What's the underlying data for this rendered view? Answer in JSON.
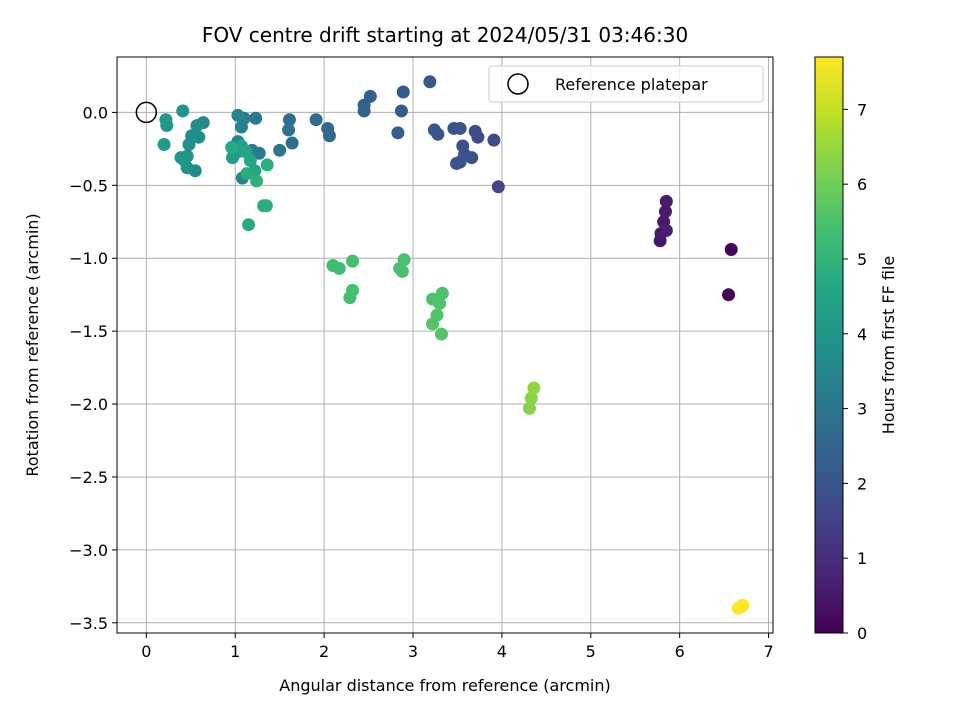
{
  "chart_data": {
    "type": "scatter",
    "title": "FOV centre drift starting at 2024/05/31 03:46:30",
    "xlabel": "Angular distance from reference (arcmin)",
    "ylabel": "Rotation from reference (arcmin)",
    "colorbar_label": "Hours from first FF file",
    "xlim": [
      -0.33,
      7.05
    ],
    "ylim": [
      -3.57,
      0.38
    ],
    "x_ticks": [
      0,
      1,
      2,
      3,
      4,
      5,
      6,
      7
    ],
    "y_ticks": [
      0.0,
      -0.5,
      -1.0,
      -1.5,
      -2.0,
      -2.5,
      -3.0,
      -3.5
    ],
    "colorbar_range": [
      0,
      7.7
    ],
    "colorbar_ticks": [
      0,
      1,
      2,
      3,
      4,
      5,
      6,
      7
    ],
    "colormap": "viridis",
    "grid": true,
    "legend": {
      "label": "Reference platepar",
      "position": "top-right"
    },
    "reference_point": {
      "x": 0.0,
      "y": 0.0
    },
    "points": [
      {
        "x": 6.55,
        "y": -1.25,
        "t": 0.0
      },
      {
        "x": 6.58,
        "y": -0.94,
        "t": 0.05
      },
      {
        "x": 5.78,
        "y": -0.88,
        "t": 0.5
      },
      {
        "x": 5.79,
        "y": -0.83,
        "t": 0.52
      },
      {
        "x": 5.82,
        "y": -0.75,
        "t": 0.55
      },
      {
        "x": 5.84,
        "y": -0.68,
        "t": 0.58
      },
      {
        "x": 5.85,
        "y": -0.61,
        "t": 0.6
      },
      {
        "x": 5.85,
        "y": -0.81,
        "t": 0.62
      },
      {
        "x": 3.96,
        "y": -0.51,
        "t": 1.6
      },
      {
        "x": 3.91,
        "y": -0.19,
        "t": 1.7
      },
      {
        "x": 3.73,
        "y": -0.17,
        "t": 1.75
      },
      {
        "x": 3.7,
        "y": -0.13,
        "t": 1.8
      },
      {
        "x": 3.66,
        "y": -0.31,
        "t": 1.85
      },
      {
        "x": 3.58,
        "y": -0.29,
        "t": 1.9
      },
      {
        "x": 3.56,
        "y": -0.23,
        "t": 1.92
      },
      {
        "x": 3.53,
        "y": -0.34,
        "t": 1.95
      },
      {
        "x": 3.49,
        "y": -0.35,
        "t": 1.97
      },
      {
        "x": 3.53,
        "y": -0.11,
        "t": 2.0
      },
      {
        "x": 3.46,
        "y": -0.11,
        "t": 2.02
      },
      {
        "x": 3.28,
        "y": -0.15,
        "t": 2.05
      },
      {
        "x": 3.24,
        "y": -0.12,
        "t": 2.07
      },
      {
        "x": 3.19,
        "y": 0.21,
        "t": 2.1
      },
      {
        "x": 2.89,
        "y": 0.14,
        "t": 2.15
      },
      {
        "x": 2.87,
        "y": 0.01,
        "t": 2.2
      },
      {
        "x": 2.83,
        "y": -0.14,
        "t": 2.25
      },
      {
        "x": 2.52,
        "y": 0.11,
        "t": 2.3
      },
      {
        "x": 2.45,
        "y": 0.05,
        "t": 2.35
      },
      {
        "x": 2.45,
        "y": 0.01,
        "t": 2.4
      },
      {
        "x": 2.06,
        "y": -0.16,
        "t": 2.6
      },
      {
        "x": 2.04,
        "y": -0.11,
        "t": 2.62
      },
      {
        "x": 1.91,
        "y": -0.05,
        "t": 2.7
      },
      {
        "x": 1.64,
        "y": -0.21,
        "t": 2.8
      },
      {
        "x": 1.61,
        "y": -0.05,
        "t": 2.85
      },
      {
        "x": 1.6,
        "y": -0.12,
        "t": 2.9
      },
      {
        "x": 1.5,
        "y": -0.26,
        "t": 3.0
      },
      {
        "x": 1.27,
        "y": -0.28,
        "t": 3.1
      },
      {
        "x": 1.23,
        "y": -0.04,
        "t": 3.15
      },
      {
        "x": 1.19,
        "y": -0.26,
        "t": 3.2
      },
      {
        "x": 1.1,
        "y": -0.04,
        "t": 3.3
      },
      {
        "x": 1.07,
        "y": -0.1,
        "t": 3.35
      },
      {
        "x": 1.08,
        "y": -0.45,
        "t": 3.4
      },
      {
        "x": 1.03,
        "y": -0.02,
        "t": 3.45
      },
      {
        "x": 1.03,
        "y": -0.2,
        "t": 3.5
      },
      {
        "x": 0.64,
        "y": -0.07,
        "t": 3.6
      },
      {
        "x": 0.59,
        "y": -0.17,
        "t": 3.65
      },
      {
        "x": 0.57,
        "y": -0.09,
        "t": 3.7
      },
      {
        "x": 0.55,
        "y": -0.4,
        "t": 3.75
      },
      {
        "x": 0.51,
        "y": -0.16,
        "t": 3.8
      },
      {
        "x": 0.48,
        "y": -0.22,
        "t": 3.85
      },
      {
        "x": 0.46,
        "y": -0.38,
        "t": 3.9
      },
      {
        "x": 0.46,
        "y": -0.3,
        "t": 3.92
      },
      {
        "x": 0.43,
        "y": -0.33,
        "t": 3.95
      },
      {
        "x": 0.41,
        "y": 0.01,
        "t": 4.0
      },
      {
        "x": 0.39,
        "y": -0.31,
        "t": 4.02
      },
      {
        "x": 0.23,
        "y": -0.09,
        "t": 4.1
      },
      {
        "x": 0.22,
        "y": -0.05,
        "t": 4.12
      },
      {
        "x": 0.2,
        "y": -0.22,
        "t": 4.15
      },
      {
        "x": 0.97,
        "y": -0.31,
        "t": 4.3
      },
      {
        "x": 1.03,
        "y": -0.27,
        "t": 4.35
      },
      {
        "x": 1.07,
        "y": -0.23,
        "t": 4.4
      },
      {
        "x": 1.12,
        "y": -0.27,
        "t": 4.5
      },
      {
        "x": 1.17,
        "y": -0.33,
        "t": 4.55
      },
      {
        "x": 1.22,
        "y": -0.4,
        "t": 4.6
      },
      {
        "x": 0.96,
        "y": -0.24,
        "t": 4.65
      },
      {
        "x": 1.15,
        "y": -0.77,
        "t": 4.7
      },
      {
        "x": 1.32,
        "y": -0.64,
        "t": 4.75
      },
      {
        "x": 1.35,
        "y": -0.64,
        "t": 4.78
      },
      {
        "x": 1.13,
        "y": -0.42,
        "t": 4.8
      },
      {
        "x": 1.36,
        "y": -0.36,
        "t": 4.85
      },
      {
        "x": 1.24,
        "y": -0.47,
        "t": 4.9
      },
      {
        "x": 2.1,
        "y": -1.05,
        "t": 5.3
      },
      {
        "x": 2.17,
        "y": -1.07,
        "t": 5.32
      },
      {
        "x": 2.32,
        "y": -1.02,
        "t": 5.35
      },
      {
        "x": 2.29,
        "y": -1.27,
        "t": 5.38
      },
      {
        "x": 2.32,
        "y": -1.22,
        "t": 5.4
      },
      {
        "x": 2.85,
        "y": -1.07,
        "t": 5.42
      },
      {
        "x": 2.88,
        "y": -1.09,
        "t": 5.45
      },
      {
        "x": 2.9,
        "y": -1.01,
        "t": 5.47
      },
      {
        "x": 3.22,
        "y": -1.28,
        "t": 5.5
      },
      {
        "x": 3.33,
        "y": -1.24,
        "t": 5.52
      },
      {
        "x": 3.3,
        "y": -1.31,
        "t": 5.55
      },
      {
        "x": 3.27,
        "y": -1.39,
        "t": 5.57
      },
      {
        "x": 3.22,
        "y": -1.45,
        "t": 5.6
      },
      {
        "x": 3.32,
        "y": -1.52,
        "t": 5.62
      },
      {
        "x": 4.31,
        "y": -2.03,
        "t": 6.3
      },
      {
        "x": 4.33,
        "y": -1.96,
        "t": 6.35
      },
      {
        "x": 4.36,
        "y": -1.89,
        "t": 6.4
      },
      {
        "x": 6.66,
        "y": -3.4,
        "t": 7.65
      },
      {
        "x": 6.69,
        "y": -3.39,
        "t": 7.68
      },
      {
        "x": 6.71,
        "y": -3.38,
        "t": 7.7
      }
    ]
  }
}
